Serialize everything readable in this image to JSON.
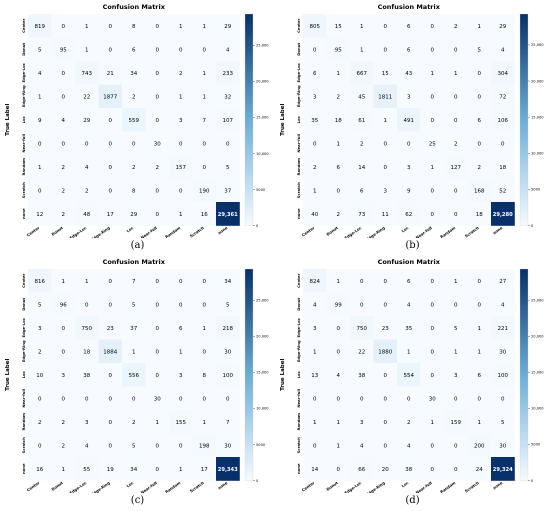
{
  "figure": {
    "captions": [
      "(a)",
      "(b)",
      "(c)",
      "(d)"
    ]
  },
  "colors": {
    "low": "#f7fbff",
    "mid": "#6aaed6",
    "high": "#08306b",
    "text_dark": "#000000",
    "text_light": "#ffffff"
  },
  "chart_data": [
    {
      "type": "heatmap",
      "title": "Confusion Matrix",
      "xlabel": "Predicted Label",
      "ylabel": "True Label",
      "categories": [
        "Center",
        "Donut",
        "Edge-Loc",
        "Edge-Ring",
        "Loc",
        "Near-full",
        "Random",
        "Scratch",
        "none"
      ],
      "cell_labels": [
        [
          "819",
          "0",
          "1",
          "0",
          "8",
          "0",
          "1",
          "1",
          "29"
        ],
        [
          "5",
          "95",
          "1",
          "0",
          "6",
          "0",
          "0",
          "0",
          "4"
        ],
        [
          "4",
          "0",
          "743",
          "21",
          "34",
          "0",
          "2",
          "1",
          "233"
        ],
        [
          "1",
          "0",
          "22",
          "1877",
          "2",
          "0",
          "1",
          "1",
          "32"
        ],
        [
          "9",
          "4",
          "29",
          "0",
          "559",
          "0",
          "3",
          "7",
          "107"
        ],
        [
          "0",
          "0",
          "0",
          "0",
          "0",
          "30",
          "0",
          "0",
          "0"
        ],
        [
          "1",
          "2",
          "4",
          "0",
          "2",
          "2",
          "157",
          "0",
          "5"
        ],
        [
          "0",
          "2",
          "2",
          "0",
          "8",
          "0",
          "0",
          "190",
          "37"
        ],
        [
          "12",
          "2",
          "48",
          "17",
          "29",
          "0",
          "1",
          "16",
          "29,361"
        ]
      ],
      "values": [
        [
          819,
          0,
          1,
          0,
          8,
          0,
          1,
          1,
          29
        ],
        [
          5,
          95,
          1,
          0,
          6,
          0,
          0,
          0,
          4
        ],
        [
          4,
          0,
          743,
          21,
          34,
          0,
          2,
          1,
          233
        ],
        [
          1,
          0,
          22,
          1877,
          2,
          0,
          1,
          1,
          32
        ],
        [
          9,
          4,
          29,
          0,
          559,
          0,
          3,
          7,
          107
        ],
        [
          0,
          0,
          0,
          0,
          0,
          30,
          0,
          0,
          0
        ],
        [
          1,
          2,
          4,
          0,
          2,
          2,
          157,
          0,
          5
        ],
        [
          0,
          2,
          2,
          0,
          8,
          0,
          0,
          190,
          37
        ],
        [
          12,
          2,
          48,
          17,
          29,
          0,
          1,
          16,
          29361
        ]
      ],
      "colorbar": {
        "ticks": [
          0,
          5000,
          10000,
          15000,
          20000,
          25000
        ],
        "tick_labels": [
          "0",
          "5000",
          "10,000",
          "15,000",
          "20,000",
          "25,000"
        ],
        "max": 29361
      }
    },
    {
      "type": "heatmap",
      "title": "Confusion Matrix",
      "xlabel": "Predicted Label",
      "ylabel": "True Label",
      "categories": [
        "Center",
        "Donut",
        "Edge-Loc",
        "Edge-Ring",
        "Loc",
        "Near-full",
        "Random",
        "Scratch",
        "none"
      ],
      "cell_labels": [
        [
          "805",
          "15",
          "1",
          "0",
          "6",
          "0",
          "2",
          "1",
          "29"
        ],
        [
          "0",
          "95",
          "1",
          "0",
          "6",
          "0",
          "0",
          "5",
          "4"
        ],
        [
          "6",
          "1",
          "667",
          "15",
          "43",
          "1",
          "1",
          "0",
          "304"
        ],
        [
          "3",
          "2",
          "45",
          "1811",
          "3",
          "0",
          "0",
          "0",
          "72"
        ],
        [
          "35",
          "18",
          "61",
          "1",
          "491",
          "0",
          "0",
          "6",
          "106"
        ],
        [
          "0",
          "1",
          "2",
          "0",
          "0",
          "25",
          "2",
          "0",
          "0"
        ],
        [
          "2",
          "6",
          "14",
          "0",
          "3",
          "1",
          "127",
          "2",
          "18"
        ],
        [
          "1",
          "0",
          "6",
          "3",
          "9",
          "0",
          "0",
          "168",
          "52"
        ],
        [
          "40",
          "2",
          "73",
          "11",
          "62",
          "0",
          "0",
          "18",
          "29,280"
        ]
      ],
      "values": [
        [
          805,
          15,
          1,
          0,
          6,
          0,
          2,
          1,
          29
        ],
        [
          0,
          95,
          1,
          0,
          6,
          0,
          0,
          5,
          4
        ],
        [
          6,
          1,
          667,
          15,
          43,
          1,
          1,
          0,
          304
        ],
        [
          3,
          2,
          45,
          1811,
          3,
          0,
          0,
          0,
          72
        ],
        [
          35,
          18,
          61,
          1,
          491,
          0,
          0,
          6,
          106
        ],
        [
          0,
          1,
          2,
          0,
          0,
          25,
          2,
          0,
          0
        ],
        [
          2,
          6,
          14,
          0,
          3,
          1,
          127,
          2,
          18
        ],
        [
          1,
          0,
          6,
          3,
          9,
          0,
          0,
          168,
          52
        ],
        [
          40,
          2,
          73,
          11,
          62,
          0,
          0,
          18,
          29280
        ]
      ],
      "colorbar": {
        "ticks": [
          0,
          5000,
          10000,
          15000,
          20000,
          25000
        ],
        "tick_labels": [
          "0",
          "5000",
          "10,000",
          "15,000",
          "20,000",
          "25,000"
        ],
        "max": 29280
      }
    },
    {
      "type": "heatmap",
      "title": "Confusion Matrix",
      "xlabel": "Predicted Label",
      "ylabel": "True Label",
      "categories": [
        "Center",
        "Donut",
        "Edge-Loc",
        "Edge-Ring",
        "Loc",
        "Near-full",
        "Random",
        "Scratch",
        "none"
      ],
      "cell_labels": [
        [
          "816",
          "1",
          "1",
          "0",
          "7",
          "0",
          "0",
          "0",
          "34"
        ],
        [
          "5",
          "96",
          "0",
          "0",
          "5",
          "0",
          "0",
          "0",
          "5"
        ],
        [
          "3",
          "0",
          "750",
          "23",
          "37",
          "0",
          "6",
          "1",
          "218"
        ],
        [
          "2",
          "0",
          "18",
          "1884",
          "1",
          "0",
          "1",
          "0",
          "30"
        ],
        [
          "10",
          "3",
          "38",
          "0",
          "556",
          "0",
          "3",
          "8",
          "100"
        ],
        [
          "0",
          "0",
          "0",
          "0",
          "0",
          "30",
          "0",
          "0",
          "0"
        ],
        [
          "2",
          "2",
          "3",
          "0",
          "2",
          "1",
          "155",
          "1",
          "7"
        ],
        [
          "0",
          "2",
          "4",
          "0",
          "5",
          "0",
          "0",
          "198",
          "30"
        ],
        [
          "16",
          "1",
          "55",
          "19",
          "34",
          "0",
          "1",
          "17",
          "29,343"
        ]
      ],
      "values": [
        [
          816,
          1,
          1,
          0,
          7,
          0,
          0,
          0,
          34
        ],
        [
          5,
          96,
          0,
          0,
          5,
          0,
          0,
          0,
          5
        ],
        [
          3,
          0,
          750,
          23,
          37,
          0,
          6,
          1,
          218
        ],
        [
          2,
          0,
          18,
          1884,
          1,
          0,
          1,
          0,
          30
        ],
        [
          10,
          3,
          38,
          0,
          556,
          0,
          3,
          8,
          100
        ],
        [
          0,
          0,
          0,
          0,
          0,
          30,
          0,
          0,
          0
        ],
        [
          2,
          2,
          3,
          0,
          2,
          1,
          155,
          1,
          7
        ],
        [
          0,
          2,
          4,
          0,
          5,
          0,
          0,
          198,
          30
        ],
        [
          16,
          1,
          55,
          19,
          34,
          0,
          1,
          17,
          29343
        ]
      ],
      "colorbar": {
        "ticks": [
          0,
          5000,
          10000,
          15000,
          20000,
          25000
        ],
        "tick_labels": [
          "0",
          "5000",
          "10,000",
          "15,000",
          "20,000",
          "25,000"
        ],
        "max": 29343
      }
    },
    {
      "type": "heatmap",
      "title": "Confusion Matrix",
      "xlabel": "Predicted Label",
      "ylabel": "True Label",
      "categories": [
        "Center",
        "Donut",
        "Edge-Loc",
        "Edge-Ring",
        "Loc",
        "Near-full",
        "Random",
        "Scratch",
        "none"
      ],
      "cell_labels": [
        [
          "824",
          "1",
          "0",
          "0",
          "6",
          "0",
          "1",
          "0",
          "27"
        ],
        [
          "4",
          "99",
          "0",
          "0",
          "4",
          "0",
          "0",
          "0",
          "4"
        ],
        [
          "3",
          "0",
          "750",
          "23",
          "35",
          "0",
          "5",
          "1",
          "221"
        ],
        [
          "1",
          "0",
          "22",
          "1880",
          "1",
          "0",
          "1",
          "1",
          "30"
        ],
        [
          "13",
          "4",
          "38",
          "0",
          "554",
          "0",
          "3",
          "6",
          "100"
        ],
        [
          "0",
          "0",
          "0",
          "0",
          "0",
          "30",
          "0",
          "0",
          "0"
        ],
        [
          "1",
          "1",
          "3",
          "0",
          "2",
          "1",
          "159",
          "1",
          "5"
        ],
        [
          "0",
          "1",
          "4",
          "0",
          "4",
          "0",
          "0",
          "200",
          "30"
        ],
        [
          "14",
          "0",
          "66",
          "20",
          "38",
          "0",
          "0",
          "24",
          "29,324"
        ]
      ],
      "values": [
        [
          824,
          1,
          0,
          0,
          6,
          0,
          1,
          0,
          27
        ],
        [
          4,
          99,
          0,
          0,
          4,
          0,
          0,
          0,
          4
        ],
        [
          3,
          0,
          750,
          23,
          35,
          0,
          5,
          1,
          221
        ],
        [
          1,
          0,
          22,
          1880,
          1,
          0,
          1,
          1,
          30
        ],
        [
          13,
          4,
          38,
          0,
          554,
          0,
          3,
          6,
          100
        ],
        [
          0,
          0,
          0,
          0,
          0,
          30,
          0,
          0,
          0
        ],
        [
          1,
          1,
          3,
          0,
          2,
          1,
          159,
          1,
          5
        ],
        [
          0,
          1,
          4,
          0,
          4,
          0,
          0,
          200,
          30
        ],
        [
          14,
          0,
          66,
          20,
          38,
          0,
          0,
          24,
          29324
        ]
      ],
      "colorbar": {
        "ticks": [
          0,
          5000,
          10000,
          15000,
          20000,
          25000
        ],
        "tick_labels": [
          "0",
          "5000",
          "10,000",
          "15,000",
          "20,000",
          "25,000"
        ],
        "max": 29324
      }
    }
  ]
}
